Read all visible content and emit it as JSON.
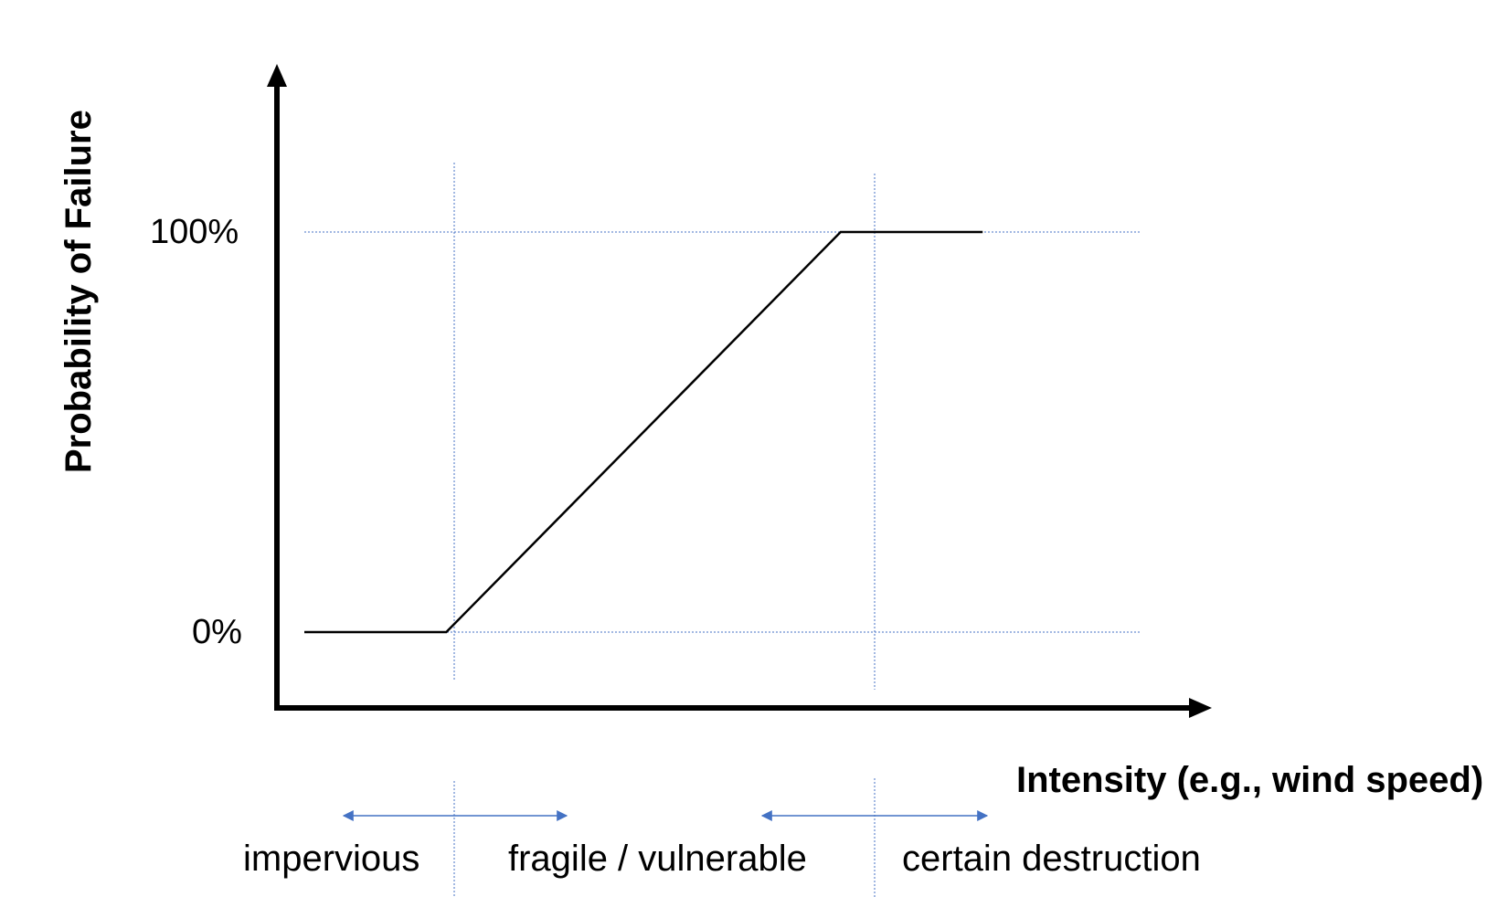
{
  "chart_data": {
    "type": "line",
    "xlabel": "Intensity (e.g., wind speed)",
    "ylabel": "Probability of Failure",
    "y_ticks": [
      "100%",
      "0%"
    ],
    "series": [
      {
        "x": [
          0.0,
          0.18,
          0.68,
          0.86
        ],
        "y": [
          0,
          0,
          100,
          100
        ]
      }
    ],
    "zones": [
      "impervious",
      "fragile / vulnerable",
      "certain destruction"
    ],
    "grid": "dotted reference lines at 0%, 100% and at the two curve breakpoints"
  },
  "colors": {
    "curve": "#000000",
    "axes": "#000000",
    "guides": "#4472c4",
    "arrows": "#4472c4"
  }
}
